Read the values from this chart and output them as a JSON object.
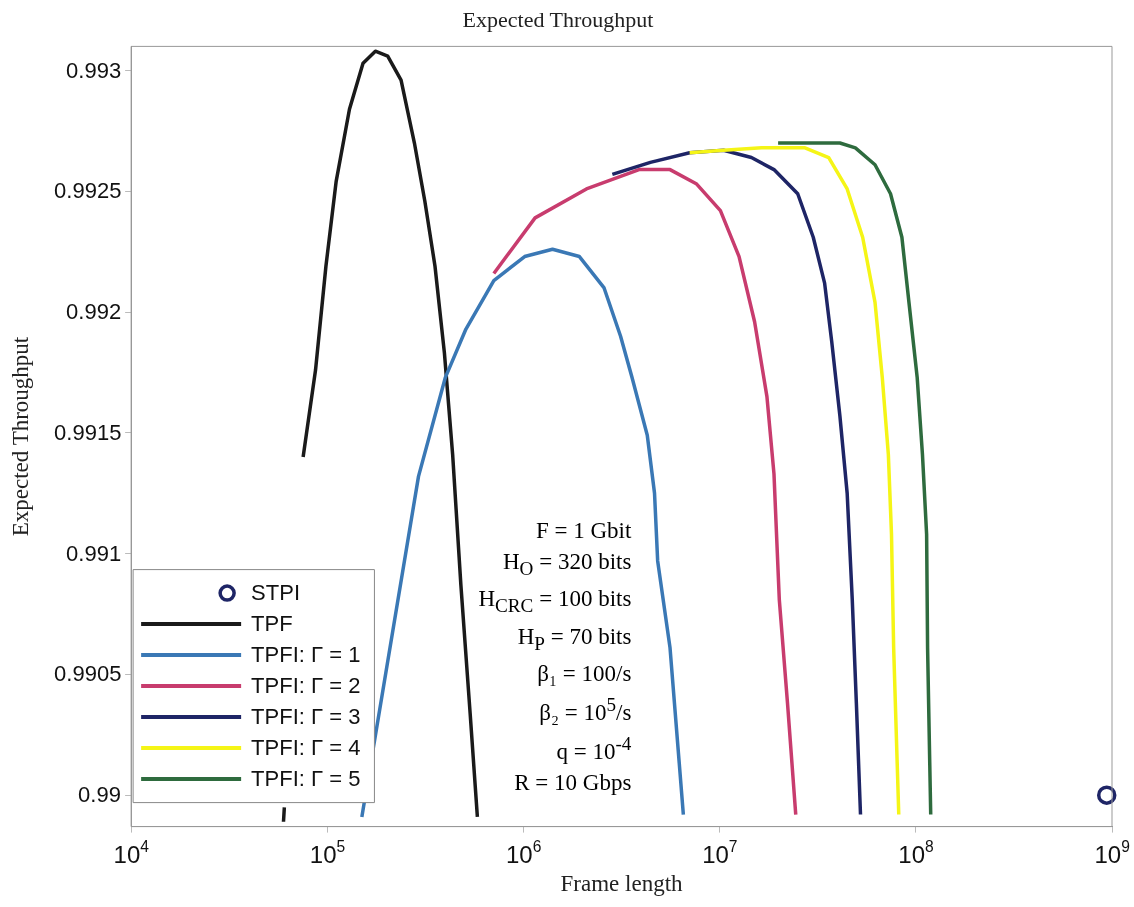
{
  "chart_data": {
    "type": "line",
    "title": "Expected Throughput",
    "xlabel": "Frame length",
    "ylabel": "Expected Throughput",
    "log": "x",
    "xlim": [
      10000,
      1000000000
    ],
    "xticks": [
      {
        "value": 10000,
        "label": "10$^{4}$"
      },
      {
        "value": 100000,
        "label": "10$^{5}$"
      },
      {
        "value": 1000000,
        "label": "10$^{6}$"
      },
      {
        "value": 10000000,
        "label": "10$^{7}$"
      },
      {
        "value": 100000000,
        "label": "10$^{8}$"
      },
      {
        "value": 1000000000,
        "label": "10$^{9}$"
      }
    ],
    "ylim": [
      0.98987,
      0.9931
    ],
    "yticks": [
      0.99,
      0.9905,
      0.991,
      0.9915,
      0.992,
      0.9925,
      0.993
    ],
    "grid": false,
    "legend": "bottom left",
    "marker": "none",
    "line_style": "solid",
    "annotations": [
      "F = 1 Gbit",
      "H$_{O}$ = 320 bits",
      "H$_{CRC}$ = 100 bits",
      "H$_{P}$ = 70 bits",
      "β₁ = 100/s",
      "β₂ = 10$^{5}$/s",
      "q = 10$^{-4}$",
      "R = 10 Gbps"
    ],
    "series": [
      {
        "name": "STPI",
        "type": "scatter",
        "marker": "circle",
        "color": "#1e2566",
        "x": [
          940000000
        ],
        "values": [
          0.99
        ]
      },
      {
        "name": "TPF",
        "color": "#1a1a1a",
        "x": [
          59800,
          60400,
          67600,
          75300,
          87100,
          98400,
          110900,
          129700,
          152100,
          175800,
          203200,
          237700,
          278000,
          314100,
          354000,
          395400,
          435500,
          479700,
          534600,
          582100
        ],
        "values": [
          0.98989,
          0.98995,
          null,
          0.9914,
          0.99176,
          0.99219,
          0.99254,
          0.99284,
          0.99303,
          0.99308,
          0.99306,
          0.99296,
          0.9927,
          0.99246,
          0.99219,
          0.99183,
          0.99141,
          0.99087,
          0.99034,
          0.98991
        ]
      },
      {
        "name": "TPFI: Γ = 1",
        "color": "#3a78b5",
        "x": [
          150000,
          291700,
          400000,
          509000,
          706000,
          1014000,
          1406000,
          1928000,
          2576000,
          3126000,
          3573000,
          4276000,
          4656000,
          4831000,
          5585000,
          6531000
        ],
        "values": [
          0.98991,
          0.99132,
          0.99173,
          0.99193,
          0.99213,
          0.99223,
          0.99226,
          0.99223,
          0.9921,
          0.9919,
          0.99173,
          0.99149,
          0.99125,
          0.99097,
          0.99061,
          0.98992
        ]
      },
      {
        "name": "TPFI: Γ = 2",
        "color": "#c83c6e",
        "x": [
          706000,
          1146000,
          2094000,
          3882000,
          5585000,
          7638000,
          10090000,
          12560000,
          15070000,
          17420000,
          18920000,
          20140000,
          22180000,
          24430000
        ],
        "values": [
          0.99216,
          0.99239,
          0.99251,
          0.99259,
          0.99259,
          0.99253,
          0.99242,
          0.99223,
          0.99196,
          0.99165,
          0.99133,
          0.99081,
          0.99038,
          0.98992
        ]
      },
      {
        "name": "TPFI: Γ = 3",
        "color": "#1e2566",
        "x": [
          2838000,
          4436000,
          7031000,
          10470000,
          14520000,
          18920000,
          25000000,
          30000000,
          34280000,
          37240000,
          41020000,
          44670000,
          47420000,
          49770000,
          52240000
        ],
        "values": [
          0.99257,
          0.99262,
          0.99266,
          0.99267,
          0.99264,
          0.99259,
          0.99249,
          0.99231,
          0.99212,
          0.99188,
          0.99157,
          0.99125,
          0.99081,
          0.99038,
          0.98992
        ]
      },
      {
        "name": "TPFI: Γ = 4",
        "color": "#f5f516",
        "x": [
          7031000,
          10470000,
          16370000,
          27230000,
          35970000,
          44670000,
          53580000,
          61940000,
          67450000,
          72440000,
          75160000,
          77090000,
          81850000
        ],
        "values": [
          0.99266,
          0.99267,
          0.99268,
          0.99268,
          0.99264,
          0.99251,
          0.99231,
          0.99204,
          0.99173,
          0.99141,
          0.99108,
          0.99061,
          0.98992
        ]
      },
      {
        "name": "TPFI: Γ = 5",
        "color": "#2e6b3e",
        "x": [
          19860000,
          41020000,
          49200000,
          61940000,
          74300000,
          84920000,
          92260000,
          101600000,
          108100000,
          113500000,
          114800000,
          119100000
        ],
        "values": [
          0.9927,
          0.9927,
          0.99268,
          0.99261,
          0.99249,
          0.99231,
          0.99204,
          0.99173,
          0.99141,
          0.99108,
          0.99061,
          0.98992
        ]
      }
    ]
  }
}
